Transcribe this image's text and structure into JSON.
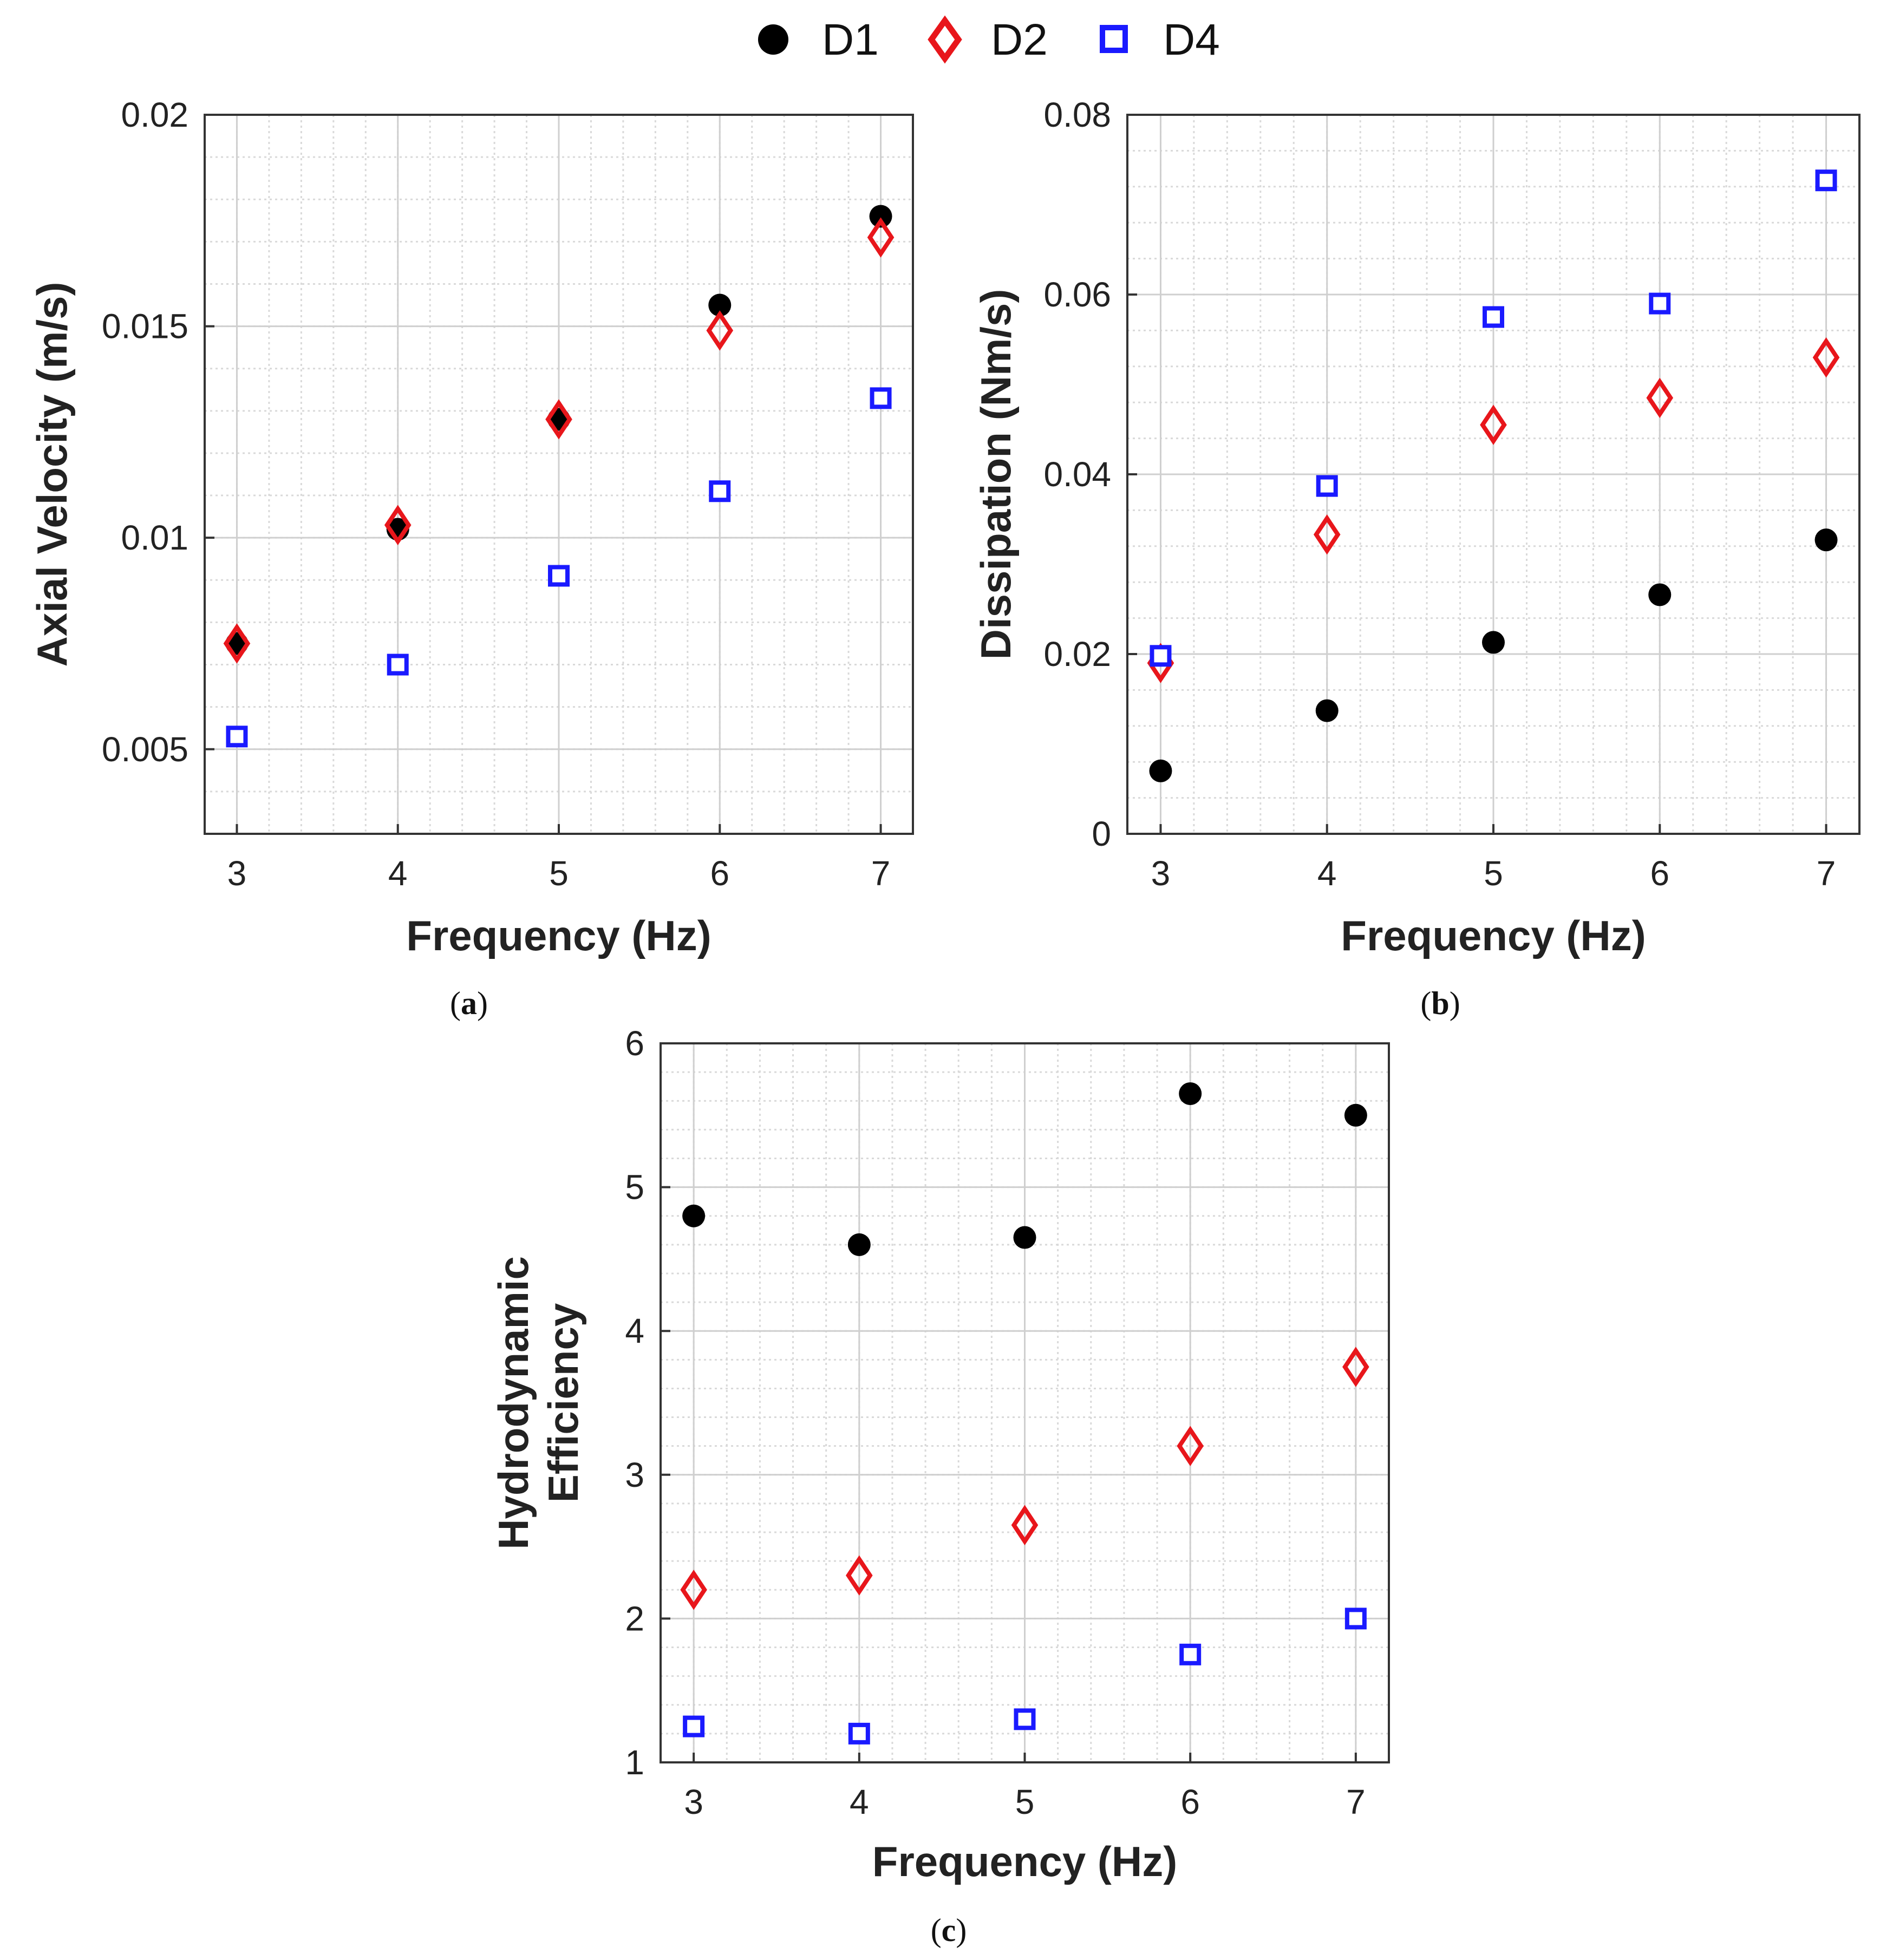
{
  "legend": {
    "items": [
      {
        "label": "D1",
        "marker": "circle",
        "color": "#000000"
      },
      {
        "label": "D2",
        "marker": "diamond",
        "color": "#e8161b"
      },
      {
        "label": "D4",
        "marker": "square",
        "color": "#1a1aff"
      }
    ]
  },
  "panels": [
    {
      "label": "a",
      "open": "(",
      "close": ")"
    },
    {
      "label": "b",
      "open": "(",
      "close": ")"
    },
    {
      "label": "c",
      "open": "(",
      "close": ")"
    }
  ],
  "chart_data": [
    {
      "id": "a",
      "type": "scatter",
      "xlabel": "Frequency (Hz)",
      "ylabel": "Axial Velocity (m/s)",
      "xlim": [
        2.8,
        7.2
      ],
      "ylim": [
        0.003,
        0.02
      ],
      "xticks": [
        3,
        4,
        5,
        6,
        7
      ],
      "yticks": [
        0.005,
        0.01,
        0.015,
        0.02
      ],
      "ytick_labels": [
        "0.005",
        "0.01",
        "0.015",
        "0.02"
      ],
      "grid": true,
      "x": [
        3,
        4,
        5,
        6,
        7
      ],
      "series": [
        {
          "name": "D1",
          "values": [
            0.0075,
            0.0102,
            0.0128,
            0.0155,
            0.0176
          ]
        },
        {
          "name": "D2",
          "values": [
            0.0075,
            0.0103,
            0.0128,
            0.0149,
            0.0171
          ]
        },
        {
          "name": "D4",
          "values": [
            0.0053,
            0.007,
            0.0091,
            0.0111,
            0.0133
          ]
        }
      ]
    },
    {
      "id": "b",
      "type": "scatter",
      "xlabel": "Frequency (Hz)",
      "ylabel": "Dissipation (Nm/s)",
      "xlim": [
        2.8,
        7.2
      ],
      "ylim": [
        0,
        0.08
      ],
      "xticks": [
        3,
        4,
        5,
        6,
        7
      ],
      "yticks": [
        0,
        0.02,
        0.04,
        0.06,
        0.08
      ],
      "ytick_labels": [
        "0",
        "0.02",
        "0.04",
        "0.06",
        "0.08"
      ],
      "grid": true,
      "x": [
        3,
        4,
        5,
        6,
        7
      ],
      "series": [
        {
          "name": "D1",
          "values": [
            0.007,
            0.0137,
            0.0213,
            0.0266,
            0.0327
          ]
        },
        {
          "name": "D2",
          "values": [
            0.019,
            0.0333,
            0.0455,
            0.0485,
            0.053
          ]
        },
        {
          "name": "D4",
          "values": [
            0.0198,
            0.0387,
            0.0575,
            0.059,
            0.0727
          ]
        }
      ]
    },
    {
      "id": "c",
      "type": "scatter",
      "xlabel": "Frequency (Hz)",
      "ylabel": [
        "Hydrodynamic",
        "Efficiency"
      ],
      "xlim": [
        2.8,
        7.2
      ],
      "ylim": [
        1,
        6
      ],
      "xticks": [
        3,
        4,
        5,
        6,
        7
      ],
      "yticks": [
        1,
        2,
        3,
        4,
        5,
        6
      ],
      "ytick_labels": [
        "1",
        "2",
        "3",
        "4",
        "5",
        "6"
      ],
      "grid": true,
      "x": [
        3,
        4,
        5,
        6,
        7
      ],
      "series": [
        {
          "name": "D1",
          "values": [
            4.8,
            4.6,
            4.65,
            5.65,
            5.5
          ]
        },
        {
          "name": "D2",
          "values": [
            2.2,
            2.3,
            2.65,
            3.2,
            3.75
          ]
        },
        {
          "name": "D4",
          "values": [
            1.25,
            1.2,
            1.3,
            1.75,
            2.0
          ]
        }
      ]
    }
  ]
}
